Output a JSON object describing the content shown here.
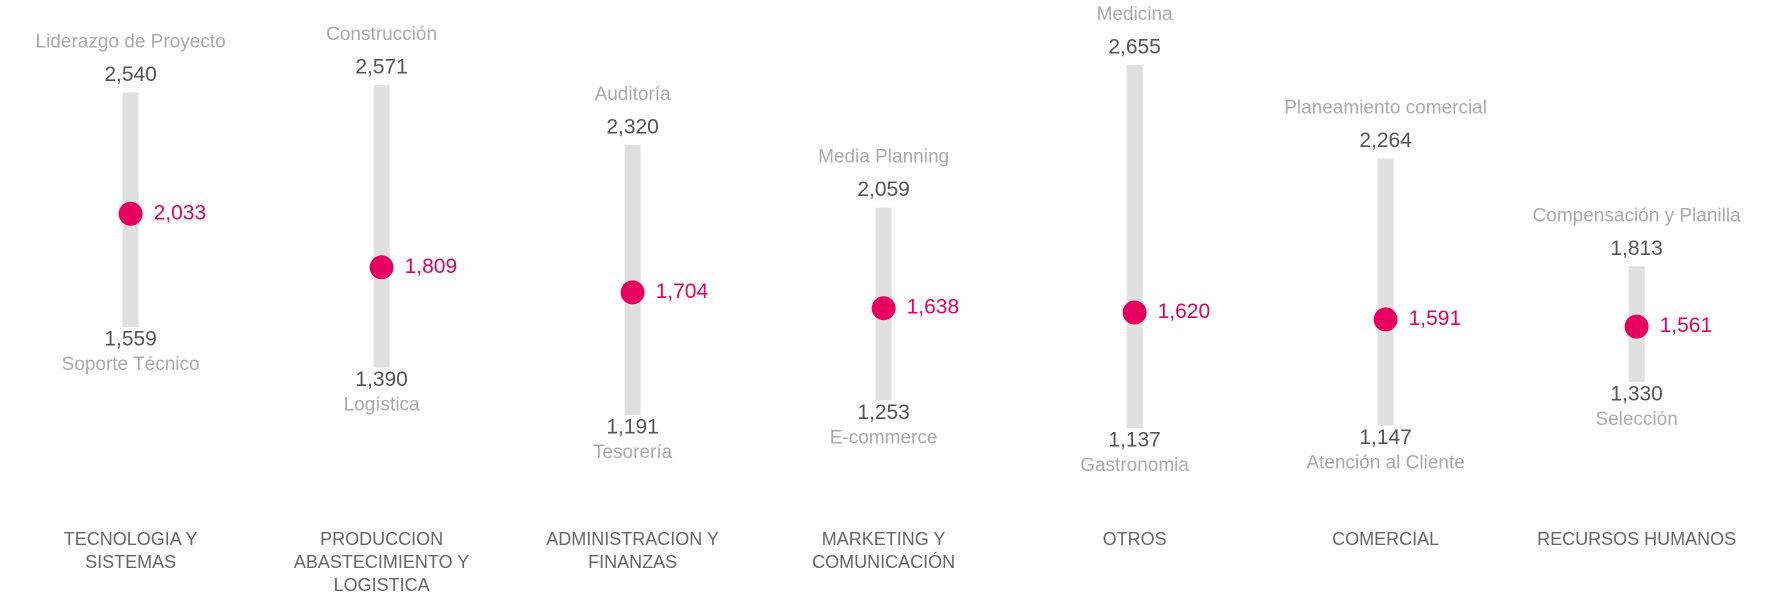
{
  "chart_data": {
    "type": "range",
    "categories": [
      "TECNOLOGIA Y SISTEMAS",
      "PRODUCCION ABASTECIMIENTO Y LOGISTICA",
      "ADMINISTRACION Y FINANZAS",
      "MARKETING Y COMUNICACIÓN",
      "OTROS",
      "COMERCIAL",
      "RECURSOS HUMANOS"
    ],
    "high_labels": [
      "Liderazgo de Proyecto",
      "Construcción",
      "Auditoría",
      "Media Planning",
      "Medicina",
      "Planeamiento comercial",
      "Compensación y Planilla"
    ],
    "high_values": [
      2540,
      2571,
      2320,
      2059,
      2655,
      2264,
      1813
    ],
    "high_value_labels": [
      "2,540",
      "2,571",
      "2,320",
      "2,059",
      "2,655",
      "2,264",
      "1,813"
    ],
    "avg_values": [
      2033,
      1809,
      1704,
      1638,
      1620,
      1591,
      1561
    ],
    "avg_value_labels": [
      "2,033",
      "1,809",
      "1,704",
      "1,638",
      "1,620",
      "1,591",
      "1,561"
    ],
    "low_values": [
      1559,
      1390,
      1191,
      1253,
      1137,
      1147,
      1330
    ],
    "low_value_labels": [
      "1,559",
      "1,390",
      "1,191",
      "1,253",
      "1,137",
      "1,147",
      "1,330"
    ],
    "low_labels": [
      "Soporte Técnico",
      "Logística",
      "Tesorería",
      "E-commerce",
      "Gastronomia",
      "Atención al Cliente",
      "Selección"
    ],
    "bar_color": "#e0e0e0",
    "dot_color": "#e6005f"
  }
}
